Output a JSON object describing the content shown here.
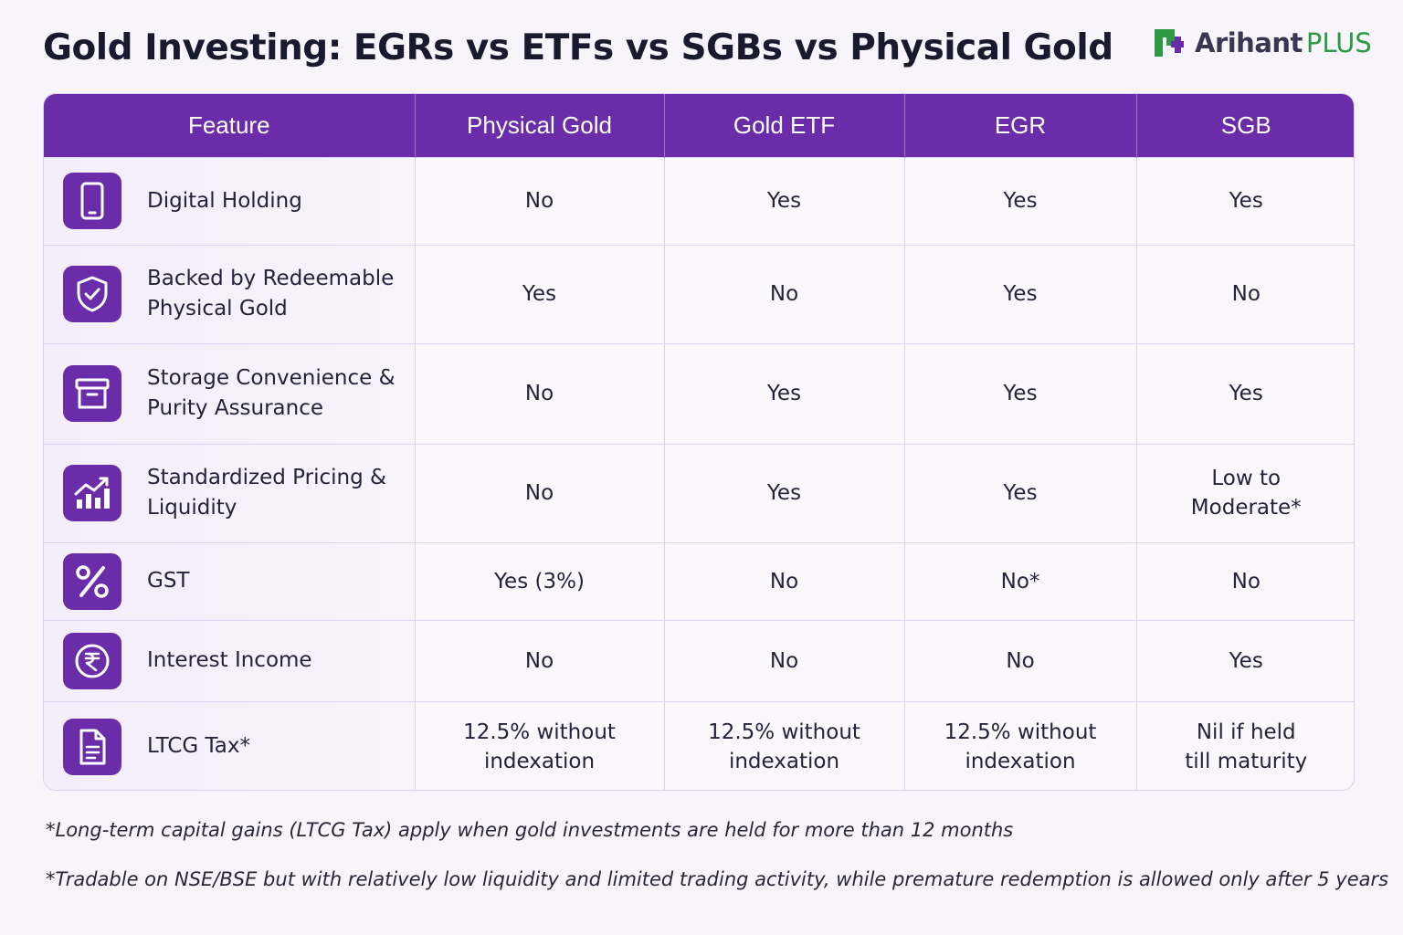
{
  "title": "Gold Investing: EGRs vs ETFs vs SGBs vs Physical Gold",
  "logo": {
    "brand": "Arihant",
    "suffix": "PLUS"
  },
  "table": {
    "headers": [
      "Feature",
      "Physical Gold",
      "Gold ETF",
      "EGR",
      "SGB"
    ],
    "rows": [
      {
        "feature": "Digital Holding",
        "icon": "phone-icon",
        "values": [
          "No",
          "Yes",
          "Yes",
          "Yes"
        ]
      },
      {
        "feature": "Backed by Redeemable\nPhysical Gold",
        "icon": "shield-check-icon",
        "values": [
          "Yes",
          "No",
          "Yes",
          "No"
        ]
      },
      {
        "feature": "Storage Convenience &\nPurity Assurance",
        "icon": "archive-box-icon",
        "values": [
          "No",
          "Yes",
          "Yes",
          "Yes"
        ]
      },
      {
        "feature": "Standardized Pricing &\nLiquidity",
        "icon": "chart-trend-up-icon",
        "values": [
          "No",
          "Yes",
          "Yes",
          "Low to\nModerate*"
        ]
      },
      {
        "feature": "GST",
        "icon": "percent-icon",
        "values": [
          "Yes (3%)",
          "No",
          "No*",
          "No"
        ]
      },
      {
        "feature": "Interest Income",
        "icon": "rupee-coin-icon",
        "values": [
          "No",
          "No",
          "No",
          "Yes"
        ]
      },
      {
        "feature": "LTCG Tax*",
        "icon": "document-icon",
        "values": [
          "12.5% without\nindexation",
          "12.5% without\nindexation",
          "12.5% without\nindexation",
          "Nil if held\ntill maturity"
        ]
      }
    ]
  },
  "footnotes": [
    "*Long-term capital gains (LTCG Tax) apply when gold investments are held for more than 12 months",
    "*Tradable on NSE/BSE but with relatively low liquidity and limited trading activity, while premature redemption is allowed only after 5 years"
  ],
  "colors": {
    "accent": "#6a2ca8",
    "brand_green": "#2e9a44"
  }
}
